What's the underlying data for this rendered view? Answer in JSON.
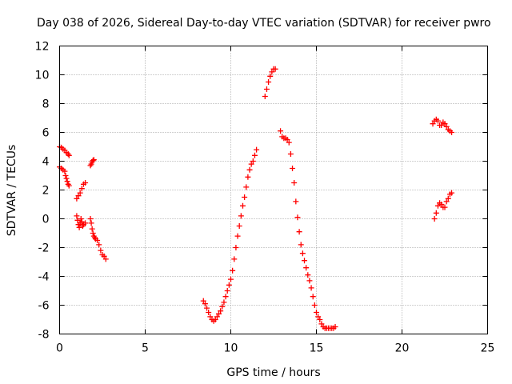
{
  "chart_data": {
    "type": "scatter",
    "title": "Day 038 of 2026, Sidereal Day-to-day VTEC variation (SDTVAR) for receiver pwro",
    "xlabel": "GPS time / hours",
    "ylabel": "SDTVAR / TECUs",
    "xlim": [
      0,
      25
    ],
    "ylim": [
      -8,
      12
    ],
    "xticks": [
      0,
      5,
      10,
      15,
      20,
      25
    ],
    "yticks": [
      -8,
      -6,
      -4,
      -2,
      0,
      2,
      4,
      6,
      8,
      10,
      12
    ],
    "grid": true,
    "marker": "plus",
    "color": "#ff0000",
    "series": [
      {
        "name": "seg-a",
        "x": [
          0.0,
          0.1,
          0.2,
          0.3,
          0.4,
          0.5,
          0.55
        ],
        "y": [
          5.0,
          4.95,
          4.85,
          4.75,
          4.6,
          4.5,
          4.4
        ]
      },
      {
        "name": "seg-b",
        "x": [
          0.0,
          0.1,
          0.2,
          0.3,
          0.35,
          0.4,
          0.45,
          0.5,
          0.55
        ],
        "y": [
          3.6,
          3.5,
          3.4,
          3.3,
          3.0,
          2.8,
          2.6,
          2.4,
          2.3
        ]
      },
      {
        "name": "seg-c",
        "x": [
          1.0,
          1.1,
          1.2,
          1.3,
          1.4,
          1.5
        ],
        "y": [
          1.4,
          1.6,
          1.8,
          2.1,
          2.4,
          2.5
        ]
      },
      {
        "name": "seg-d",
        "x": [
          1.0,
          1.05,
          1.1,
          1.15,
          1.2,
          1.25,
          1.3,
          1.35,
          1.4,
          1.5
        ],
        "y": [
          0.2,
          -0.1,
          -0.4,
          -0.6,
          -0.3,
          0.0,
          -0.2,
          -0.5,
          -0.4,
          -0.3
        ]
      },
      {
        "name": "seg-e",
        "x": [
          1.8,
          1.85,
          1.9,
          1.95,
          2.0
        ],
        "y": [
          3.7,
          3.8,
          3.95,
          4.05,
          4.1
        ]
      },
      {
        "name": "seg-f",
        "x": [
          1.8,
          1.85,
          1.9,
          1.95,
          2.0,
          2.05,
          2.1,
          2.2,
          2.3,
          2.4,
          2.5,
          2.6,
          2.7
        ],
        "y": [
          0.0,
          -0.3,
          -0.7,
          -1.0,
          -1.2,
          -1.3,
          -1.4,
          -1.5,
          -1.8,
          -2.2,
          -2.5,
          -2.6,
          -2.8
        ]
      },
      {
        "name": "seg-g",
        "x": [
          8.4,
          8.5,
          8.6,
          8.7,
          8.8,
          8.9,
          9.0,
          9.1,
          9.2,
          9.3,
          9.4,
          9.5,
          9.6,
          9.7,
          9.8,
          9.9,
          10.0,
          10.1,
          10.2,
          10.3,
          10.4,
          10.5,
          10.6,
          10.7,
          10.8,
          10.9,
          11.0,
          11.1,
          11.2,
          11.3,
          11.4,
          11.5
        ],
        "y": [
          -5.7,
          -5.9,
          -6.2,
          -6.5,
          -6.8,
          -7.0,
          -7.1,
          -7.0,
          -6.8,
          -6.6,
          -6.4,
          -6.1,
          -5.8,
          -5.4,
          -5.0,
          -4.6,
          -4.2,
          -3.6,
          -2.8,
          -2.0,
          -1.2,
          -0.5,
          0.2,
          0.9,
          1.5,
          2.2,
          2.9,
          3.4,
          3.8,
          4.0,
          4.4,
          4.8
        ]
      },
      {
        "name": "seg-h",
        "x": [
          12.0,
          12.1,
          12.2,
          12.3,
          12.4,
          12.5,
          12.6
        ],
        "y": [
          8.5,
          9.0,
          9.5,
          9.9,
          10.2,
          10.4,
          10.4
        ]
      },
      {
        "name": "seg-i",
        "x": [
          12.9,
          13.0,
          13.1,
          13.2,
          13.3,
          13.4,
          13.5,
          13.6,
          13.7,
          13.8,
          13.9,
          14.0,
          14.1,
          14.2,
          14.3,
          14.4,
          14.5,
          14.6,
          14.7,
          14.8,
          14.9,
          15.0,
          15.1,
          15.2,
          15.3,
          15.4,
          15.5,
          15.6,
          15.7,
          15.8,
          15.9,
          16.0,
          16.1
        ],
        "y": [
          6.1,
          5.7,
          5.6,
          5.6,
          5.5,
          5.3,
          4.5,
          3.5,
          2.5,
          1.2,
          0.1,
          -0.9,
          -1.8,
          -2.4,
          -2.9,
          -3.4,
          -3.9,
          -4.3,
          -4.8,
          -5.4,
          -6.0,
          -6.5,
          -6.8,
          -7.0,
          -7.3,
          -7.5,
          -7.6,
          -7.6,
          -7.6,
          -7.6,
          -7.6,
          -7.6,
          -7.5
        ]
      },
      {
        "name": "seg-j",
        "x": [
          21.8,
          21.9,
          22.0,
          22.1,
          22.2,
          22.3,
          22.4,
          22.5,
          22.6,
          22.7,
          22.8,
          22.9
        ],
        "y": [
          6.6,
          6.8,
          6.9,
          6.8,
          6.5,
          6.5,
          6.7,
          6.6,
          6.4,
          6.2,
          6.1,
          6.0
        ]
      },
      {
        "name": "seg-k",
        "x": [
          21.9,
          22.0,
          22.1,
          22.2,
          22.3,
          22.4,
          22.5,
          22.6,
          22.7,
          22.8,
          22.9
        ],
        "y": [
          0.0,
          0.4,
          0.9,
          1.1,
          1.0,
          0.8,
          0.8,
          1.2,
          1.4,
          1.7,
          1.8
        ]
      }
    ]
  }
}
